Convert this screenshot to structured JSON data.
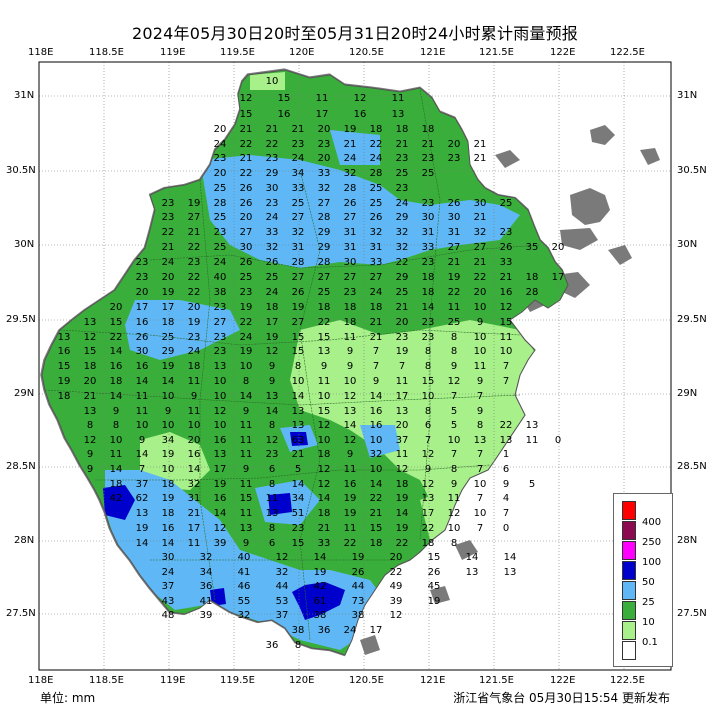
{
  "title": "2024年05月30日20时至05月31日20时24小时累计雨量预报",
  "lon_ticks": [
    "118E",
    "118.5E",
    "119E",
    "119.5E",
    "120E",
    "120.5E",
    "121E",
    "121.5E",
    "122E",
    "122.5E"
  ],
  "lat_ticks": [
    "31N",
    "30.5N",
    "30N",
    "29.5N",
    "29N",
    "28.5N",
    "28N",
    "27.5N"
  ],
  "unit_label": "单位: mm",
  "issuer": "浙江省气象台 05月30日15:54 更新发布",
  "legend": [
    {
      "label": "400",
      "color": "#ff0000"
    },
    {
      "label": "250",
      "color": "#8b0a50"
    },
    {
      "label": "100",
      "color": "#ff00ff"
    },
    {
      "label": "50",
      "color": "#0000cc"
    },
    {
      "label": "25",
      "color": "#5fb8f5"
    },
    {
      "label": "10",
      "color": "#3aae3a"
    },
    {
      "label": "0.1",
      "color": "#a8f08a"
    },
    {
      "label": "",
      "color": "#ffffff"
    }
  ],
  "background_color": "#7a7a7a",
  "station_values": [
    [
      "10"
    ],
    [
      "12",
      "15",
      "11",
      "12",
      "11"
    ],
    [
      "15",
      "16",
      "17",
      "16",
      "13"
    ],
    [
      "20",
      "21",
      "21",
      "21",
      "20",
      "19",
      "18",
      "18",
      "18"
    ],
    [
      "24",
      "22",
      "22",
      "23",
      "23",
      "21",
      "22",
      "21",
      "21",
      "20",
      "21"
    ],
    [
      "23",
      "21",
      "23",
      "24",
      "20",
      "24",
      "24",
      "23",
      "23",
      "23",
      "21"
    ],
    [
      "20",
      "22",
      "29",
      "34",
      "33",
      "32",
      "28",
      "25",
      "25"
    ],
    [
      "25",
      "26",
      "30",
      "33",
      "32",
      "28",
      "25",
      "23"
    ],
    [
      "23",
      "19",
      "28",
      "26",
      "23",
      "25",
      "27",
      "26",
      "25",
      "24",
      "23",
      "26",
      "30",
      "25"
    ],
    [
      "23",
      "27",
      "25",
      "20",
      "24",
      "27",
      "28",
      "27",
      "26",
      "29",
      "30",
      "30",
      "21"
    ],
    [
      "22",
      "21",
      "23",
      "27",
      "33",
      "32",
      "29",
      "31",
      "32",
      "32",
      "31",
      "31",
      "32",
      "23"
    ],
    [
      "21",
      "22",
      "25",
      "30",
      "32",
      "31",
      "29",
      "31",
      "31",
      "32",
      "33",
      "27",
      "27",
      "26",
      "35",
      "20"
    ],
    [
      "23",
      "24",
      "23",
      "24",
      "26",
      "26",
      "28",
      "28",
      "30",
      "33",
      "22",
      "23",
      "21",
      "21",
      "33"
    ],
    [
      "23",
      "20",
      "22",
      "40",
      "25",
      "25",
      "27",
      "27",
      "27",
      "27",
      "29",
      "18",
      "19",
      "22",
      "21",
      "18",
      "17"
    ],
    [
      "20",
      "19",
      "22",
      "38",
      "23",
      "24",
      "26",
      "25",
      "23",
      "24",
      "25",
      "18",
      "22",
      "20",
      "16",
      "28"
    ],
    [
      "20",
      "17",
      "17",
      "20",
      "23",
      "19",
      "18",
      "19",
      "18",
      "18",
      "18",
      "21",
      "14",
      "11",
      "10",
      "12"
    ],
    [
      "13",
      "15",
      "16",
      "18",
      "19",
      "27",
      "22",
      "17",
      "27",
      "22",
      "18",
      "21",
      "20",
      "23",
      "25",
      "9",
      "15"
    ],
    [
      "13",
      "12",
      "22",
      "26",
      "25",
      "23",
      "23",
      "24",
      "19",
      "15",
      "15",
      "11",
      "21",
      "23",
      "23",
      "8",
      "10",
      "11"
    ],
    [
      "16",
      "15",
      "14",
      "30",
      "29",
      "24",
      "23",
      "19",
      "12",
      "15",
      "13",
      "9",
      "7",
      "19",
      "8",
      "8",
      "10",
      "10"
    ],
    [
      "15",
      "18",
      "16",
      "16",
      "19",
      "18",
      "13",
      "10",
      "9",
      "8",
      "9",
      "9",
      "7",
      "7",
      "8",
      "9",
      "11",
      "7"
    ],
    [
      "19",
      "20",
      "18",
      "14",
      "14",
      "11",
      "10",
      "8",
      "9",
      "10",
      "11",
      "10",
      "9",
      "11",
      "15",
      "12",
      "9",
      "7"
    ],
    [
      "18",
      "21",
      "14",
      "11",
      "10",
      "9",
      "10",
      "14",
      "13",
      "14",
      "10",
      "12",
      "14",
      "17",
      "10",
      "7",
      "7"
    ],
    [
      "13",
      "9",
      "11",
      "9",
      "11",
      "12",
      "9",
      "14",
      "13",
      "15",
      "13",
      "16",
      "13",
      "8",
      "5",
      "9"
    ],
    [
      "8",
      "8",
      "10",
      "10",
      "10",
      "10",
      "11",
      "8",
      "13",
      "12",
      "14",
      "16",
      "20",
      "6",
      "5",
      "8",
      "22",
      "13"
    ],
    [
      "12",
      "10",
      "9",
      "34",
      "20",
      "16",
      "11",
      "12",
      "63",
      "10",
      "12",
      "10",
      "37",
      "7",
      "10",
      "13",
      "13",
      "11",
      "0"
    ],
    [
      "9",
      "11",
      "14",
      "19",
      "16",
      "13",
      "11",
      "23",
      "21",
      "18",
      "9",
      "32",
      "11",
      "12",
      "7",
      "7",
      "1"
    ],
    [
      "9",
      "14",
      "7",
      "10",
      "14",
      "17",
      "9",
      "6",
      "5",
      "12",
      "11",
      "10",
      "12",
      "9",
      "8",
      "7",
      "6"
    ],
    [
      "18",
      "37",
      "18",
      "32",
      "19",
      "11",
      "8",
      "14",
      "12",
      "16",
      "14",
      "18",
      "12",
      "9",
      "10",
      "9",
      "5"
    ],
    [
      "42",
      "62",
      "19",
      "31",
      "16",
      "15",
      "11",
      "34",
      "14",
      "19",
      "22",
      "19",
      "13",
      "11",
      "7",
      "4"
    ],
    [
      "13",
      "18",
      "21",
      "14",
      "11",
      "13",
      "51",
      "18",
      "19",
      "21",
      "14",
      "17",
      "12",
      "10",
      "7"
    ],
    [
      "19",
      "16",
      "17",
      "12",
      "13",
      "8",
      "23",
      "21",
      "11",
      "15",
      "19",
      "22",
      "10",
      "7",
      "0"
    ],
    [
      "14",
      "14",
      "11",
      "39",
      "9",
      "6",
      "15",
      "33",
      "22",
      "18",
      "22",
      "18",
      "8"
    ],
    [
      "30",
      "32",
      "40",
      "12",
      "14",
      "19",
      "20",
      "15",
      "14",
      "14"
    ],
    [
      "24",
      "34",
      "41",
      "32",
      "19",
      "26",
      "22",
      "26",
      "13",
      "13"
    ],
    [
      "37",
      "36",
      "46",
      "44",
      "42",
      "44",
      "49",
      "45"
    ],
    [
      "43",
      "41",
      "55",
      "53",
      "61",
      "73",
      "39",
      "19"
    ],
    [
      "48",
      "39",
      "32",
      "37",
      "38",
      "38",
      "12"
    ],
    [
      "38",
      "36",
      "24",
      "17"
    ],
    [
      "36",
      "8"
    ]
  ]
}
